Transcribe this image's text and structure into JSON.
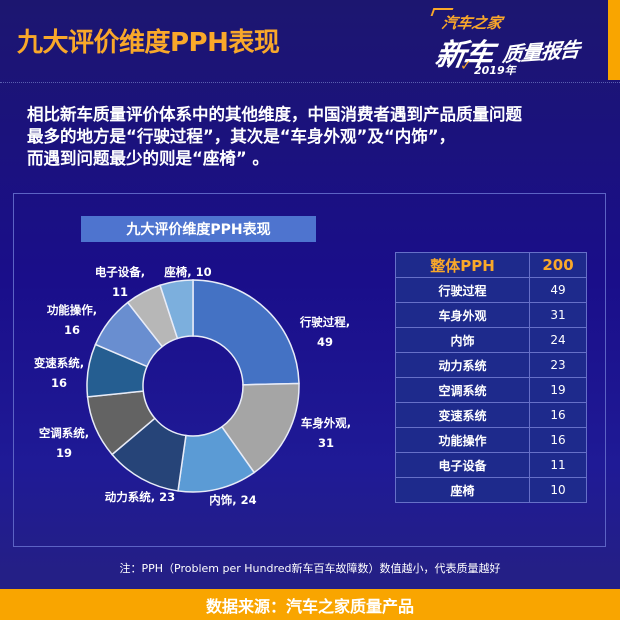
{
  "header": {
    "title": "九大评价维度PPH表现",
    "logo": {
      "brand": "汽车之家",
      "main": "新车",
      "sub": "质量报告",
      "year": "2019年"
    }
  },
  "intro": {
    "lines": [
      "相比新车质量评价体系中的其他维度，中国消费者遇到产品质量问题",
      "最多的地方是“行驶过程”，其次是“车身外观”及“内饰”，",
      "而遇到问题最少的则是“座椅” 。"
    ]
  },
  "chart_data": {
    "type": "pie",
    "subtype": "donut",
    "title": "九大评价维度PPH表现",
    "categories": [
      "行驶过程",
      "车身外观",
      "内饰",
      "动力系统",
      "空调系统",
      "变速系统",
      "功能操作",
      "电子设备",
      "座椅"
    ],
    "values": [
      49,
      31,
      24,
      23,
      19,
      16,
      16,
      11,
      10
    ],
    "colors": [
      "#4472c4",
      "#a5a5a5",
      "#5b9bd5",
      "#264478",
      "#636363",
      "#255e91",
      "#698ed0",
      "#b7b7b7",
      "#7cafdd"
    ],
    "data_labels": [
      "行驶过程, 49",
      "车身外观, 31",
      "内饰, 24",
      "动力系统, 23",
      "空调系统, 19",
      "变速系统, 16",
      "功能操作, 16",
      "电子设备, 11",
      "座椅, 10"
    ],
    "total": 200,
    "start_angle": "12 o'clock",
    "direction": "clockwise",
    "legend": "none"
  },
  "labels": [
    {
      "l1": "行驶过程,",
      "l2": "49"
    },
    {
      "l1": "车身外观,",
      "l2": "31"
    },
    {
      "l1": "内饰, 24",
      "l2": ""
    },
    {
      "l1": "动力系统, 23",
      "l2": ""
    },
    {
      "l1": "空调系统,",
      "l2": "19"
    },
    {
      "l1": "变速系统,",
      "l2": "16"
    },
    {
      "l1": "功能操作,",
      "l2": "16"
    },
    {
      "l1": "电子设备,",
      "l2": "11"
    },
    {
      "l1": "座椅, 10",
      "l2": ""
    }
  ],
  "table": {
    "header": {
      "name": "整体PPH",
      "value": "200"
    },
    "rows": [
      {
        "name": "行驶过程",
        "value": "49"
      },
      {
        "name": "车身外观",
        "value": "31"
      },
      {
        "name": "内饰",
        "value": "24"
      },
      {
        "name": "动力系统",
        "value": "23"
      },
      {
        "name": "空调系统",
        "value": "19"
      },
      {
        "name": "变速系统",
        "value": "16"
      },
      {
        "name": "功能操作",
        "value": "16"
      },
      {
        "name": "电子设备",
        "value": "11"
      },
      {
        "name": "座椅",
        "value": "10"
      }
    ]
  },
  "note": "注：PPH（Problem per Hundred新车百车故障数）数值越小，代表质量越好",
  "footer": "数据来源：汽车之家质量产品",
  "colors": {
    "accent_orange": "#f9a500",
    "title_orange": "#f9a82a",
    "background": "#1a0e8a",
    "chart_title_bg": "#4e74cf"
  }
}
